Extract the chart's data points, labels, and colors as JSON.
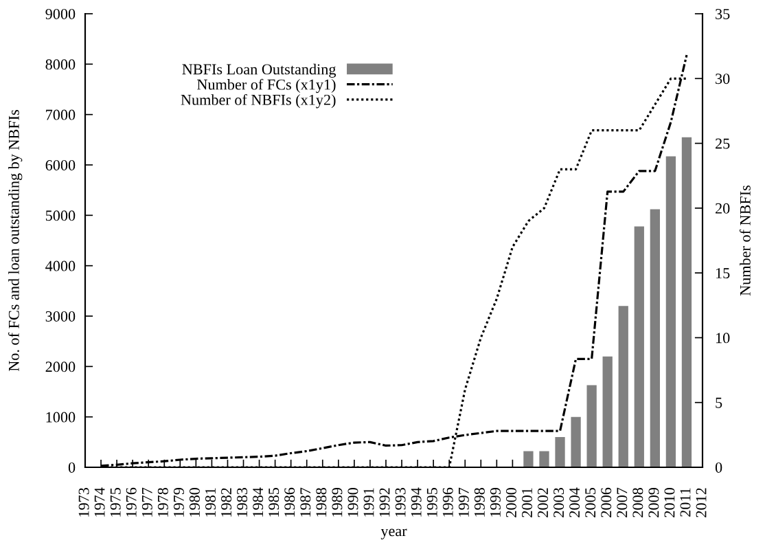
{
  "chart_data": {
    "type": "bar",
    "xlabel": "year",
    "ylabel": "No. of FCs and loan outstanding by NBFIs",
    "y2label": "Number of NBFIs",
    "xlim": [
      1973,
      2012
    ],
    "xticks": [
      1973,
      1974,
      1975,
      1976,
      1977,
      1978,
      1979,
      1980,
      1981,
      1982,
      1983,
      1984,
      1985,
      1986,
      1987,
      1988,
      1989,
      1990,
      1991,
      1992,
      1993,
      1994,
      1995,
      1996,
      1997,
      1998,
      1999,
      2000,
      2001,
      2002,
      2003,
      2004,
      2005,
      2006,
      2007,
      2008,
      2009,
      2010,
      2011,
      2012
    ],
    "ylim": [
      0,
      9000
    ],
    "yticks": [
      0,
      1000,
      2000,
      3000,
      4000,
      5000,
      6000,
      7000,
      8000,
      9000
    ],
    "y2lim": [
      0,
      35
    ],
    "y2ticks": [
      0,
      5,
      10,
      15,
      20,
      25,
      30,
      35
    ],
    "legend": "top left",
    "series": [
      {
        "name": "NBFIs Loan Outstanding",
        "color": "#808080",
        "x": [
          2001,
          2002,
          2003,
          2004,
          2005,
          2006,
          2007,
          2008,
          2009,
          2010,
          2011
        ],
        "values": [
          320,
          320,
          600,
          1000,
          1630,
          2200,
          3200,
          4780,
          5120,
          6170,
          6550
        ]
      },
      {
        "type": "line",
        "name": "Number of FCs (x1y1)",
        "color": "#000000",
        "line_style": "dashdot",
        "x": [
          1974,
          1975,
          1976,
          1977,
          1978,
          1979,
          1980,
          1981,
          1982,
          1983,
          1984,
          1985,
          1986,
          1987,
          1988,
          1989,
          1990,
          1991,
          1992,
          1993,
          1994,
          1995,
          1996,
          1997,
          1998,
          1999,
          2000,
          2001,
          2002,
          2003,
          2004,
          2005,
          2006,
          2007,
          2008,
          2009,
          2010,
          2011
        ],
        "values": [
          30,
          50,
          80,
          100,
          120,
          150,
          170,
          180,
          190,
          200,
          210,
          230,
          280,
          320,
          380,
          440,
          490,
          500,
          430,
          440,
          500,
          520,
          590,
          640,
          680,
          720,
          720,
          720,
          720,
          720,
          2150,
          2150,
          5470,
          5470,
          5880,
          5880,
          6850,
          8180
        ]
      },
      {
        "type": "line",
        "name": "Number of NBFIs (x1y2)",
        "color": "#000000",
        "line_style": "dotted",
        "axis": "y2",
        "x": [
          1974,
          1975,
          1976,
          1977,
          1978,
          1979,
          1980,
          1981,
          1982,
          1983,
          1984,
          1985,
          1986,
          1987,
          1988,
          1989,
          1990,
          1991,
          1992,
          1993,
          1994,
          1995,
          1996,
          1997,
          1998,
          1999,
          2000,
          2001,
          2002,
          2003,
          2004,
          2005,
          2006,
          2007,
          2008,
          2009,
          2010,
          2011
        ],
        "values": [
          0,
          0,
          0,
          0,
          0,
          0,
          0,
          0,
          0,
          0,
          0,
          0,
          0,
          0,
          0,
          0,
          0,
          0,
          0,
          0,
          0,
          0,
          0,
          6,
          10,
          13,
          17,
          19,
          20,
          23,
          23,
          26,
          26,
          26,
          26,
          28,
          30,
          30
        ]
      }
    ]
  }
}
